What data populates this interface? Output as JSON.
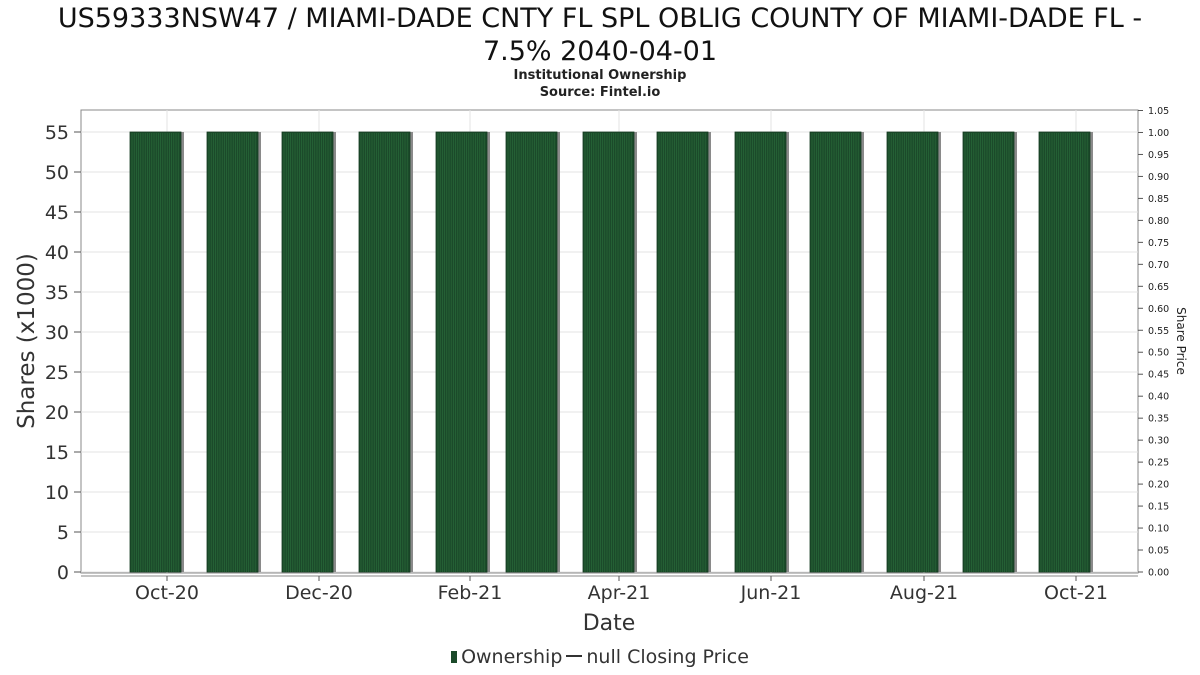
{
  "chart_data": {
    "type": "bar",
    "title_lines": [
      "US59333NSW47 / MIAMI-DADE CNTY FL SPL OBLIG COUNTY OF MIAMI-DADE FL -",
      "7.5% 2040-04-01"
    ],
    "subtitle": "Institutional Ownership",
    "source": "Source: Fintel.io",
    "xlabel": "Date",
    "ylabel": "Shares (x1000)",
    "y2label": "Share Price",
    "x_tick_labels": [
      "Oct-20",
      "Dec-20",
      "Feb-21",
      "Apr-21",
      "Jun-21",
      "Aug-21",
      "Oct-21"
    ],
    "y_ticks": [
      0,
      5,
      10,
      15,
      20,
      25,
      30,
      35,
      40,
      45,
      50,
      55
    ],
    "y2_ticks": [
      "0.00",
      "0.05",
      "0.10",
      "0.15",
      "0.20",
      "0.25",
      "0.30",
      "0.35",
      "0.40",
      "0.45",
      "0.50",
      "0.55",
      "0.60",
      "0.65",
      "0.70",
      "0.75",
      "0.80",
      "0.85",
      "0.90",
      "0.95",
      "1.00",
      "1.05"
    ],
    "ylim": [
      0,
      55
    ],
    "y2lim": [
      0,
      1.05
    ],
    "series": [
      {
        "name": "Ownership",
        "color": "#1b4a2a",
        "values": [
          55,
          55,
          55,
          55,
          55,
          55,
          55,
          55,
          55,
          55,
          55,
          55,
          55
        ]
      }
    ],
    "legend": {
      "position": "bottom",
      "ownership_label": "Ownership",
      "price_label": "null Closing Price"
    },
    "grid": true
  }
}
